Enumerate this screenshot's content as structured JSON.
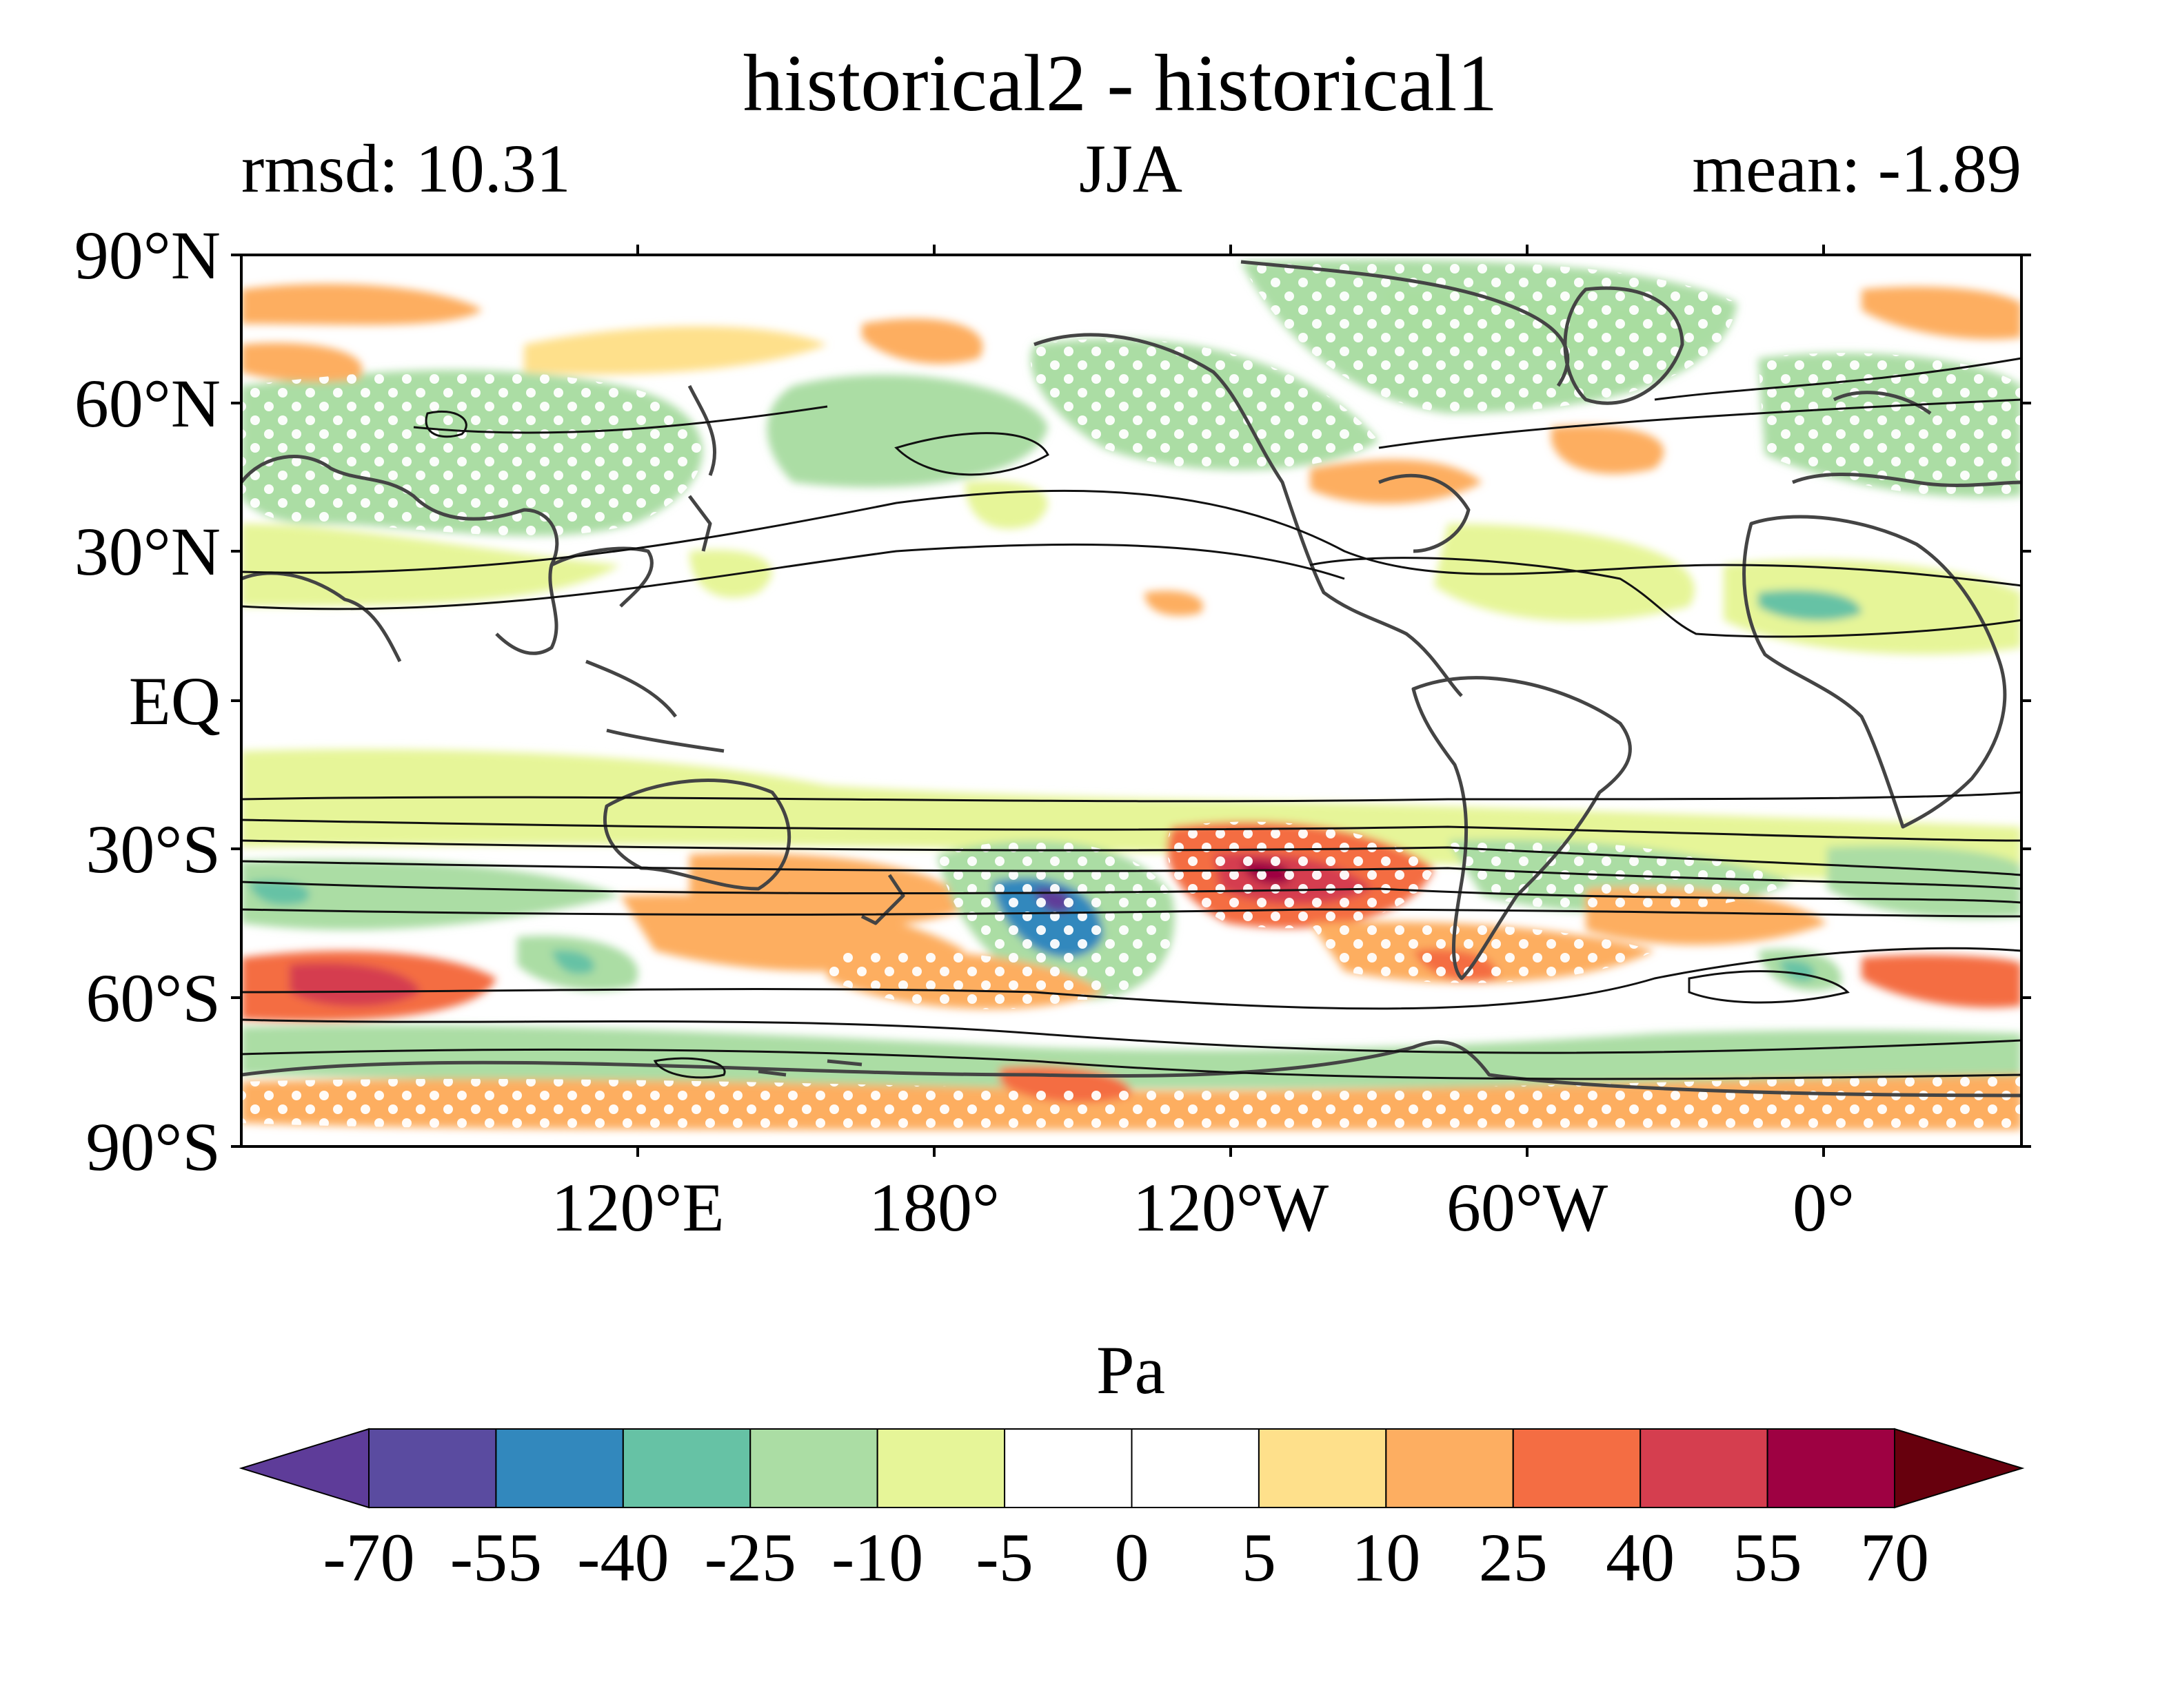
{
  "title": "historical2 - historical1",
  "stats": {
    "left": "rmsd: 10.31",
    "center": "JJA",
    "right": "mean: -1.89"
  },
  "map": {
    "projection": "equirectangular",
    "central_longitude": "150°W",
    "lat_labels": [
      "90°N",
      "60°N",
      "30°N",
      "EQ",
      "30°S",
      "60°S",
      "90°S"
    ],
    "lon_labels": [
      "120°E",
      "180°",
      "120°W",
      "60°W",
      "0°"
    ],
    "stippling": "white dots",
    "contours": "black lines"
  },
  "colorbar": {
    "label": "Pa",
    "ticks": [
      "-70",
      "-55",
      "-40",
      "-25",
      "-10",
      "-5",
      "0",
      "5",
      "10",
      "25",
      "40",
      "55",
      "70"
    ],
    "colors": [
      "#5e3c99",
      "#5a4ba0",
      "#3288bd",
      "#66c2a5",
      "#abdda4",
      "#e6f598",
      "#ffffff",
      "#ffffff",
      "#fee08b",
      "#fdae61",
      "#f46d43",
      "#d53e4f",
      "#9e0142",
      "#67000d"
    ]
  }
}
